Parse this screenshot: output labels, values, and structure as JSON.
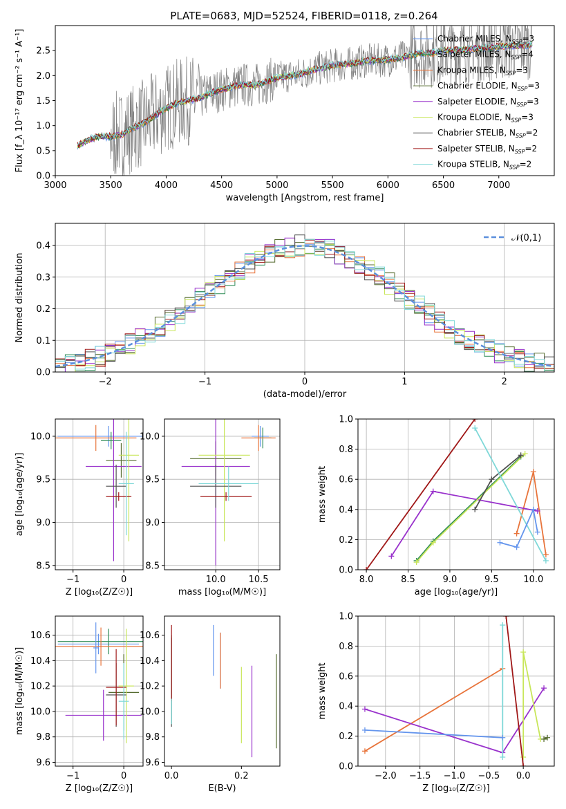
{
  "figure_title": "PLATE=0683, MJD=52524, FIBERID=0118, z=0.264",
  "model_names": [
    "Chabrier MILES",
    "Salpeter MILES",
    "Kroupa MILES",
    "Chabrier ELODIE",
    "Salpeter ELODIE",
    "Kroupa ELODIE",
    "Chabrier STELIB",
    "Salpeter STELIB",
    "Kroupa STELIB"
  ],
  "model_colors": [
    "#6495ed",
    "#2e8b57",
    "#e8743b",
    "#556b2f",
    "#9932cc",
    "#c8e65a",
    "#505050",
    "#a01818",
    "#7fd8d8"
  ],
  "chart_data": [
    {
      "id": "spectrum",
      "type": "line",
      "title": "PLATE=0683, MJD=52524, FIBERID=0118, z=0.264",
      "xlabel": "wavelength [Angstrom, rest frame]",
      "ylabel": "Flux [f_λ 10⁻¹⁷ erg cm⁻² s⁻¹ A⁻¹]",
      "xlim": [
        3000,
        7500
      ],
      "ylim": [
        0,
        3.0
      ],
      "xticks": [
        3000,
        3500,
        4000,
        4500,
        5000,
        5500,
        6000,
        6500,
        7000
      ],
      "yticks": [
        0.0,
        0.5,
        1.0,
        1.5,
        2.0,
        2.5
      ],
      "grid": false,
      "legend": "top-right",
      "data_color": "#808080",
      "continuum": {
        "x": [
          3200,
          3300,
          3400,
          3500,
          3600,
          3700,
          3800,
          3900,
          4000,
          4100,
          4200,
          4300,
          4400,
          4500,
          4600,
          4700,
          4800,
          4900,
          5000,
          5100,
          5200,
          5300,
          5400,
          5500,
          5600,
          5700,
          5800,
          5900,
          6000,
          6100,
          6200,
          6300,
          6400,
          6500,
          6600,
          6700,
          6800,
          6900,
          7000,
          7100,
          7200,
          7300
        ],
        "y": [
          0.6,
          0.72,
          0.78,
          0.78,
          0.82,
          0.95,
          1.05,
          1.2,
          1.35,
          1.45,
          1.5,
          1.55,
          1.65,
          1.72,
          1.78,
          1.82,
          1.8,
          1.88,
          1.95,
          2.0,
          2.02,
          2.1,
          2.15,
          2.2,
          2.22,
          2.25,
          2.3,
          2.3,
          2.32,
          2.35,
          2.4,
          2.45,
          2.45,
          2.5,
          2.5,
          2.52,
          2.55,
          2.55,
          2.58,
          2.6,
          2.6,
          2.62
        ]
      },
      "series": [
        {
          "name": "Chabrier MILES, N_SSP=3"
        },
        {
          "name": "Salpeter MILES, N_SSP=4"
        },
        {
          "name": "Kroupa MILES, N_SSP=3"
        },
        {
          "name": "Chabrier ELODIE, N_SSP=3"
        },
        {
          "name": "Salpeter ELODIE, N_SSP=3"
        },
        {
          "name": "Kroupa ELODIE, N_SSP=3"
        },
        {
          "name": "Chabrier STELIB, N_SSP=2"
        },
        {
          "name": "Salpeter STELIB, N_SSP=2"
        },
        {
          "name": "Kroupa STELIB, N_SSP=2"
        }
      ]
    },
    {
      "id": "residuals",
      "type": "line",
      "xlabel": "(data-model)/error",
      "ylabel": "Normed distribution",
      "xlim": [
        -2.5,
        2.5
      ],
      "ylim": [
        0,
        0.47
      ],
      "xticks": [
        -2,
        -1,
        0,
        1,
        2
      ],
      "yticks": [
        0.0,
        0.1,
        0.2,
        0.3,
        0.4
      ],
      "grid": true,
      "legend": "top-right",
      "reference": {
        "name": "𝒩(0,1)",
        "mean": 0,
        "sigma": 1
      }
    },
    {
      "id": "age_vs_Z",
      "type": "scatter",
      "xlabel": "Z [log₁₀(Z/Z☉)]",
      "ylabel": "age  [log₁₀(age/yr)]",
      "xlim": [
        -1.35,
        0.38
      ],
      "ylim": [
        8.45,
        10.2
      ],
      "xticks": [
        -1,
        0
      ],
      "yticks": [
        8.5,
        9.0,
        9.5,
        10.0
      ],
      "grid": true,
      "points": [
        {
          "model": 0,
          "x": -0.3,
          "xerr": 1.0,
          "y": 10.0,
          "yerr": 0.12
        },
        {
          "model": 1,
          "x": -0.25,
          "xerr": 0.2,
          "y": 9.95,
          "yerr": 0.1
        },
        {
          "model": 2,
          "x": -0.55,
          "xerr": 0.8,
          "y": 9.98,
          "yerr": 0.15
        },
        {
          "model": 3,
          "x": -0.05,
          "xerr": 0.3,
          "y": 9.72,
          "yerr": 0.2
        },
        {
          "model": 4,
          "x": -0.2,
          "xerr": 0.55,
          "y": 9.65,
          "yerr": 1.1
        },
        {
          "model": 5,
          "x": 0.1,
          "xerr": 0.2,
          "y": 9.78,
          "yerr": 1.0
        },
        {
          "model": 6,
          "x": -0.15,
          "xerr": 0.2,
          "y": 9.42,
          "yerr": 0.25
        },
        {
          "model": 7,
          "x": -0.1,
          "xerr": 0.25,
          "y": 9.3,
          "yerr": 0.05
        },
        {
          "model": 8,
          "x": 0.05,
          "xerr": 0.15,
          "y": 9.45,
          "yerr": 0.6
        }
      ]
    },
    {
      "id": "age_vs_mass",
      "type": "scatter",
      "xlabel": "mass [log₁₀(M/M☉)]",
      "ylabel": "",
      "xlim": [
        9.4,
        10.75
      ],
      "ylim": [
        8.45,
        10.2
      ],
      "xticks": [
        10.0,
        10.5
      ],
      "yticks": [
        8.5,
        9.0,
        9.5,
        10.0
      ],
      "grid": true,
      "points": [
        {
          "model": 0,
          "x": 10.52,
          "xerr": 0.1,
          "y": 10.0,
          "yerr": 0.12
        },
        {
          "model": 1,
          "x": 10.55,
          "xerr": 0.1,
          "y": 9.98,
          "yerr": 0.12
        },
        {
          "model": 2,
          "x": 10.5,
          "xerr": 0.2,
          "y": 9.98,
          "yerr": 0.15
        },
        {
          "model": 3,
          "x": 10.0,
          "xerr": 0.3,
          "y": 9.74,
          "yerr": 0.2
        },
        {
          "model": 4,
          "x": 10.0,
          "xerr": 0.4,
          "y": 9.65,
          "yerr": 1.15
        },
        {
          "model": 5,
          "x": 10.1,
          "xerr": 0.3,
          "y": 9.78,
          "yerr": 1.0
        },
        {
          "model": 6,
          "x": 10.0,
          "xerr": 0.3,
          "y": 9.42,
          "yerr": 0.25
        },
        {
          "model": 7,
          "x": 10.12,
          "xerr": 0.3,
          "y": 9.3,
          "yerr": 0.05
        },
        {
          "model": 8,
          "x": 10.15,
          "xerr": 0.35,
          "y": 9.45,
          "yerr": 0.2
        }
      ]
    },
    {
      "id": "weight_vs_age",
      "type": "line",
      "xlabel": "age  [log₁₀(age/yr)]",
      "ylabel": "mass weight",
      "xlim": [
        7.9,
        10.25
      ],
      "ylim": [
        0,
        1.0
      ],
      "xticks": [
        8.0,
        8.5,
        9.0,
        9.5,
        10.0
      ],
      "yticks": [
        0.0,
        0.2,
        0.4,
        0.6,
        0.8,
        1.0
      ],
      "grid": true,
      "series": [
        {
          "model": 1,
          "x": [
            8.6,
            8.8,
            9.85
          ],
          "y": [
            0.06,
            0.19,
            0.75
          ]
        },
        {
          "model": 2,
          "x": [
            9.8,
            10.0,
            10.15
          ],
          "y": [
            0.24,
            0.65,
            0.1
          ]
        },
        {
          "model": 4,
          "x": [
            8.3,
            8.8,
            10.05
          ],
          "y": [
            0.09,
            0.52,
            0.39
          ]
        },
        {
          "model": 5,
          "x": [
            8.6,
            8.8,
            9.9
          ],
          "y": [
            0.05,
            0.18,
            0.77
          ]
        },
        {
          "model": 6,
          "x": [
            9.3,
            9.5,
            9.85
          ],
          "y": [
            0.4,
            0.6,
            0.76
          ]
        },
        {
          "model": 7,
          "x": [
            8.0,
            9.3
          ],
          "y": [
            0.0,
            1.0
          ]
        },
        {
          "model": 8,
          "x": [
            9.3,
            10.15
          ],
          "y": [
            0.94,
            0.06
          ]
        },
        {
          "model": 9,
          "x": [
            9.6,
            9.8,
            10.0,
            10.05
          ],
          "y": [
            0.18,
            0.15,
            0.4,
            0.25
          ]
        }
      ]
    },
    {
      "id": "mass_vs_Z",
      "type": "scatter",
      "xlabel": "Z [log₁₀(Z/Z☉)]",
      "ylabel": "mass [log₁₀(M/M☉)]",
      "xlim": [
        -1.35,
        0.38
      ],
      "ylim": [
        9.57,
        10.75
      ],
      "xticks": [
        -1,
        0
      ],
      "yticks": [
        9.6,
        9.8,
        10.0,
        10.2,
        10.4,
        10.6
      ],
      "grid": true,
      "points": [
        {
          "model": 0,
          "x": -0.5,
          "xerr": 0.8,
          "y": 10.53,
          "yerr": 0.08
        },
        {
          "model": 1,
          "x": -0.3,
          "xerr": 1.0,
          "y": 10.55,
          "yerr": 0.1
        },
        {
          "model": 2,
          "x": -0.45,
          "xerr": 0.9,
          "y": 10.51,
          "yerr": 0.15
        },
        {
          "model": 3,
          "x": 0.0,
          "xerr": 0.3,
          "y": 10.15,
          "yerr": 0.3
        },
        {
          "model": 4,
          "x": -0.4,
          "xerr": 0.75,
          "y": 9.97,
          "yerr": 0.2
        },
        {
          "model": 5,
          "x": 0.05,
          "xerr": 0.15,
          "y": 10.2,
          "yerr": 0.45
        },
        {
          "model": 6,
          "x": -0.15,
          "xerr": 0.2,
          "y": 10.13,
          "yerr": 0.25
        },
        {
          "model": 7,
          "x": -0.15,
          "xerr": 0.2,
          "y": 10.19,
          "yerr": 0.3
        },
        {
          "model": 8,
          "x": 0.0,
          "xerr": 0.1,
          "y": 10.08,
          "yerr": 0.3
        },
        {
          "model": 9,
          "x": -0.55,
          "xerr": 0.05,
          "y": 10.5,
          "yerr": 0.2
        }
      ]
    },
    {
      "id": "mass_vs_EBV",
      "type": "scatter",
      "xlabel": "E(B-V)",
      "ylabel": "",
      "xlim": [
        -0.02,
        0.31
      ],
      "ylim": [
        9.57,
        10.75
      ],
      "xticks": [
        0.0,
        0.2
      ],
      "yticks": [
        9.6,
        9.8,
        10.0,
        10.2,
        10.4,
        10.6
      ],
      "grid": false,
      "points": [
        {
          "model": 0,
          "x": 0.14,
          "y": 10.4,
          "yerr": 0.22
        },
        {
          "model": 1,
          "x": 0.0,
          "y": 10.25,
          "yerr": 0.35
        },
        {
          "model": 2,
          "x": 0.14,
          "y": 10.4,
          "yerr": 0.22
        },
        {
          "model": 3,
          "x": 0.3,
          "y": 10.08,
          "yerr": 0.37
        },
        {
          "model": 4,
          "x": 0.23,
          "y": 10.0,
          "yerr": 0.36
        },
        {
          "model": 5,
          "x": 0.2,
          "y": 10.05,
          "yerr": 0.3
        },
        {
          "model": 6,
          "x": 0.0,
          "y": 10.23,
          "yerr": 0.35
        },
        {
          "model": 7,
          "x": 0.0,
          "y": 10.38,
          "yerr": 0.3
        },
        {
          "model": 8,
          "x": 0.0,
          "y": 10.0,
          "yerr": 0.1
        },
        {
          "model": 9,
          "x": 0.12,
          "y": 10.48,
          "yerr": 0.2
        }
      ]
    },
    {
      "id": "weight_vs_Z",
      "type": "line",
      "xlabel": "Z [log₁₀(Z/Z☉)]",
      "ylabel": "mass weight",
      "xlim": [
        -2.4,
        0.45
      ],
      "ylim": [
        0,
        1.0
      ],
      "xticks": [
        -2.0,
        -1.5,
        -1.0,
        -0.5,
        0.0
      ],
      "yticks": [
        0.0,
        0.2,
        0.4,
        0.6,
        0.8,
        1.0
      ],
      "grid": true,
      "series": [
        {
          "model": 2,
          "x": [
            -2.3,
            -0.3
          ],
          "y": [
            0.1,
            0.65
          ]
        },
        {
          "model": 4,
          "x": [
            -2.3,
            -0.3,
            0.3
          ],
          "y": [
            0.38,
            0.09,
            0.52
          ]
        },
        {
          "model": 5,
          "x": [
            0.0,
            0.0,
            0.25
          ],
          "y": [
            0.06,
            0.76,
            0.18
          ]
        },
        {
          "model": 7,
          "x": [
            -0.25,
            0.0
          ],
          "y": [
            1.0,
            0.0
          ]
        },
        {
          "model": 8,
          "x": [
            -0.3,
            -0.3
          ],
          "y": [
            0.06,
            0.94
          ]
        },
        {
          "model": 9,
          "x": [
            -2.3,
            -0.3
          ],
          "y": [
            0.24,
            0.19
          ]
        },
        {
          "model": 3,
          "x": [
            0.3,
            0.35
          ],
          "y": [
            0.18,
            0.19
          ]
        }
      ]
    }
  ]
}
